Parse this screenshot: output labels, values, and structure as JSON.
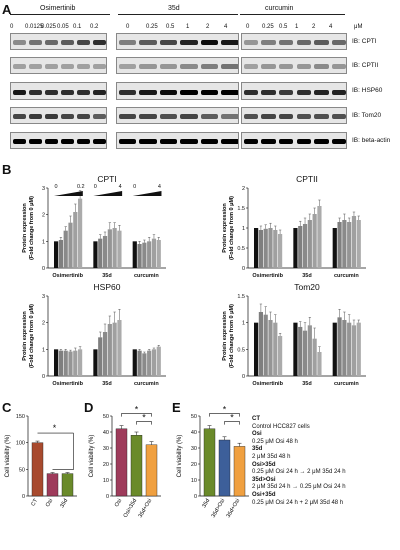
{
  "figure_labels": {
    "a": "A",
    "b": "B",
    "c": "C",
    "d": "D",
    "e": "E"
  },
  "panelA": {
    "groups": [
      {
        "name": "Osimertinib",
        "doses": [
          "0",
          "0.0125",
          "0.025",
          "0.05",
          "0.1",
          "0.2"
        ]
      },
      {
        "name": "35d",
        "doses": [
          "0",
          "0.25",
          "0.5",
          "1",
          "2",
          "4"
        ]
      },
      {
        "name": "curcumin",
        "doses": [
          "0",
          "0.25",
          "0.5",
          "1",
          "2",
          "4"
        ]
      }
    ],
    "unit": "μM",
    "rows": [
      "IB: CPTI",
      "IB: CPTII",
      "IB: HSP60",
      "IB: Tom20",
      "IB: beta-actin"
    ]
  },
  "panelB": {
    "ylabel_line1": "Protein expression",
    "ylabel_line2": "(Fold change from 0 μM)",
    "groups": [
      "Osimertinib",
      "35d",
      "curcumin"
    ],
    "dose_labels": [
      {
        "lo": "0",
        "hi": "0.2"
      },
      {
        "lo": "0",
        "hi": "4"
      },
      {
        "lo": "0",
        "hi": "4"
      }
    ]
  },
  "panelC": {
    "ylabel": "Cell viability (%)"
  },
  "panelD": {
    "ylabel": "Cell viability (%)"
  },
  "panelE": {
    "ylabel": "Cell viability (%)"
  },
  "legend": [
    {
      "t": "CT",
      "b": true
    },
    {
      "t": "Control HCC827 cells",
      "b": false
    },
    {
      "t": "Osi",
      "b": true
    },
    {
      "t": "0.25 μM Osi 48 h",
      "b": false
    },
    {
      "t": "35d",
      "b": true
    },
    {
      "t": "2 μM 35d 48 h",
      "b": false
    },
    {
      "t": "Osi>35d",
      "b": true
    },
    {
      "t": "0.25 μM Osi 24 h → 2 μM 35d 24 h",
      "b": false
    },
    {
      "t": "35d>Osi",
      "b": true
    },
    {
      "t": "2 μM 35d 24 h → 0.25 μM Osi 24 h",
      "b": false
    },
    {
      "t": "Osi+35d",
      "b": true
    },
    {
      "t": "0.25 μM Osi 24 h + 2 μM 35d 48 h",
      "b": false
    }
  ],
  "significance": "*",
  "colors": {
    "black": "#111111",
    "dgray": "#7f7f7f",
    "lgray": "#a6a6a6",
    "maroon": "#9e3b5b",
    "osi_red": "#a84a2e",
    "green": "#6a8a2a",
    "blue": "#3d5f9a",
    "orange": "#f0a040"
  },
  "chart_data": [
    {
      "type": "bar",
      "title": "CPTI",
      "categories": [
        "Osimertinib",
        "35d",
        "curcumin"
      ],
      "ylim": [
        0,
        3
      ],
      "yticks": [
        0,
        1,
        2,
        3
      ],
      "series_values": [
        [
          1.0,
          1.05,
          1.4,
          1.7,
          2.1,
          2.6
        ],
        [
          1.0,
          1.1,
          1.2,
          1.45,
          1.5,
          1.4
        ],
        [
          1.0,
          0.9,
          0.95,
          1.0,
          1.1,
          1.05
        ]
      ],
      "errors": [
        [
          0,
          0.1,
          0.15,
          0.25,
          0.3,
          0.3
        ],
        [
          0,
          0.15,
          0.15,
          0.25,
          0.2,
          0.2
        ],
        [
          0,
          0.1,
          0.1,
          0.15,
          0.15,
          0.1
        ]
      ]
    },
    {
      "type": "bar",
      "title": "CPTII",
      "categories": [
        "Osimertinib",
        "35d",
        "curcumin"
      ],
      "ylim": [
        0,
        2
      ],
      "yticks": [
        0,
        0.5,
        1,
        1.5,
        2
      ],
      "series_values": [
        [
          1.0,
          0.95,
          0.98,
          1.0,
          0.95,
          0.85
        ],
        [
          1.0,
          1.05,
          1.1,
          1.2,
          1.35,
          1.55
        ],
        [
          1.0,
          1.15,
          1.2,
          1.15,
          1.3,
          1.2
        ]
      ],
      "errors": [
        [
          0,
          0.1,
          0.1,
          0.12,
          0.1,
          0.1
        ],
        [
          0,
          0.12,
          0.15,
          0.15,
          0.15,
          0.15
        ],
        [
          0,
          0.1,
          0.15,
          0.1,
          0.1,
          0.1
        ]
      ]
    },
    {
      "type": "bar",
      "title": "HSP60",
      "categories": [
        "Osimertinib",
        "35d",
        "curcumin"
      ],
      "ylim": [
        0,
        3
      ],
      "yticks": [
        0,
        1,
        2,
        3
      ],
      "series_values": [
        [
          1.0,
          0.95,
          0.95,
          0.92,
          0.95,
          1.0
        ],
        [
          1.0,
          1.45,
          1.65,
          1.95,
          2.0,
          2.1
        ],
        [
          1.0,
          0.95,
          0.85,
          0.95,
          1.0,
          1.1
        ]
      ],
      "errors": [
        [
          0,
          0.05,
          0.05,
          0.05,
          0.1,
          0.1
        ],
        [
          0,
          0.2,
          0.3,
          0.3,
          0.4,
          0.4
        ],
        [
          0,
          0.05,
          0.05,
          0.05,
          0.05,
          0.05
        ]
      ]
    },
    {
      "type": "bar",
      "title": "Tom20",
      "categories": [
        "Osimertinib",
        "35d",
        "curcumin"
      ],
      "ylim": [
        0,
        1.5
      ],
      "yticks": [
        0,
        0.5,
        1,
        1.5
      ],
      "series_values": [
        [
          1.0,
          1.2,
          1.15,
          1.05,
          1.0,
          0.75
        ],
        [
          1.0,
          0.92,
          0.85,
          0.95,
          0.7,
          0.45
        ],
        [
          1.0,
          1.1,
          1.05,
          1.0,
          0.95,
          1.0
        ]
      ],
      "errors": [
        [
          0,
          0.15,
          0.15,
          0.15,
          0.15,
          0.05
        ],
        [
          0,
          0.1,
          0.15,
          0.15,
          0.2,
          0.1
        ],
        [
          0,
          0.15,
          0.15,
          0.15,
          0.1,
          0.05
        ]
      ]
    },
    {
      "type": "bar",
      "panel": "C",
      "categories": [
        "CT",
        "Osi",
        "35d"
      ],
      "values": [
        100,
        42,
        42
      ],
      "errors": [
        3,
        2,
        2
      ],
      "ylim": [
        0,
        150
      ],
      "yticks": [
        0,
        50,
        100,
        150
      ],
      "colors": [
        "#a84a2e",
        "#9e3b5b",
        "#6a8a2a"
      ]
    },
    {
      "type": "bar",
      "panel": "D",
      "categories": [
        "Osi",
        "Osi>35d",
        "35d+Osi"
      ],
      "values": [
        42,
        38,
        32
      ],
      "errors": [
        2,
        2,
        2
      ],
      "ylim": [
        0,
        50
      ],
      "yticks": [
        0,
        10,
        20,
        30,
        40,
        50
      ],
      "colors": [
        "#9e3b5b",
        "#6a8a2a",
        "#f0a040"
      ]
    },
    {
      "type": "bar",
      "panel": "E",
      "categories": [
        "35d",
        "35d>Osi",
        "35d+Osi"
      ],
      "values": [
        42,
        35,
        31
      ],
      "errors": [
        2,
        2,
        2
      ],
      "ylim": [
        0,
        50
      ],
      "yticks": [
        0,
        10,
        20,
        30,
        40,
        50
      ],
      "colors": [
        "#6a8a2a",
        "#3d5f9a",
        "#f0a040"
      ]
    }
  ]
}
